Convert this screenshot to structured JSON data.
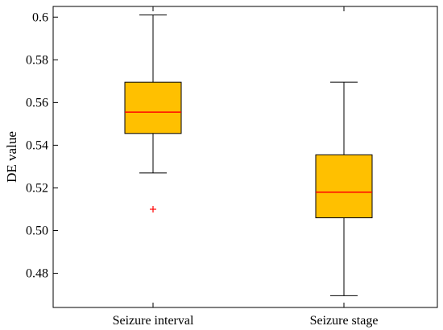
{
  "chart_data": {
    "type": "boxplot",
    "title": "",
    "xlabel": "",
    "ylabel": "DE value",
    "ylim": [
      0.464,
      0.605
    ],
    "yticks": [
      0.48,
      0.5,
      0.52,
      0.54,
      0.56,
      0.58,
      0.6
    ],
    "ytick_labels": [
      "0.48",
      "0.50",
      "0.52",
      "0.54",
      "0.56",
      "0.58",
      "0.6"
    ],
    "grid": false,
    "box_color": "#FFC000",
    "median_color": "#FF0000",
    "outlier_color": "#FF0000",
    "categories": [
      "Seizure interval",
      "Seizure stage"
    ],
    "boxes": [
      {
        "whisker_low": 0.527,
        "q1": 0.5455,
        "median": 0.5555,
        "q3": 0.5695,
        "whisker_high": 0.601,
        "outliers": [
          0.51
        ]
      },
      {
        "whisker_low": 0.4695,
        "q1": 0.506,
        "median": 0.518,
        "q3": 0.5355,
        "whisker_high": 0.5695,
        "outliers": []
      }
    ]
  }
}
